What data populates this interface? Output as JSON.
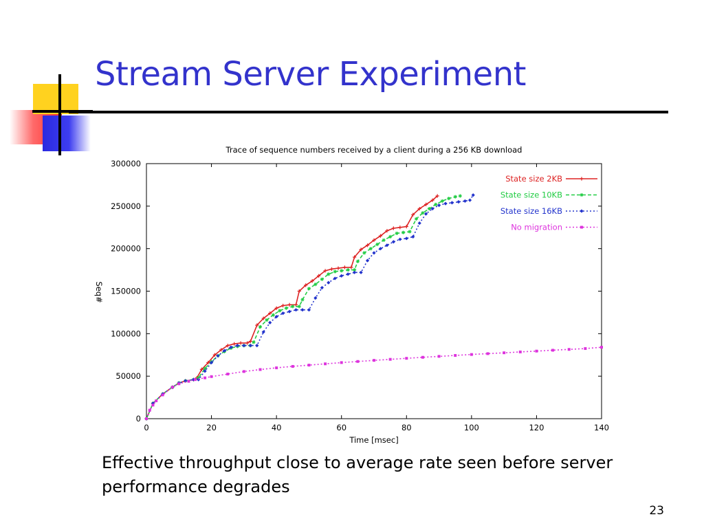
{
  "slide": {
    "title": "Stream Server Experiment",
    "caption": "Effective throughput close to average rate seen before server performance degrades",
    "page_number": "23",
    "title_color": "#3333cc"
  },
  "chart_data": {
    "type": "line",
    "title": "Trace of sequence numbers received by a client during a 256 KB download",
    "xlabel": "Time [msec]",
    "ylabel": "Seq#",
    "xlim": [
      0,
      140
    ],
    "ylim": [
      0,
      300000
    ],
    "xticks": [
      0,
      20,
      40,
      60,
      80,
      100,
      120,
      140
    ],
    "yticks": [
      0,
      50000,
      100000,
      150000,
      200000,
      250000,
      300000
    ],
    "grid": false,
    "legend_position": "top-right",
    "series": [
      {
        "name": "State size 2KB",
        "color": "#dd2222",
        "marker": "plus",
        "dash": "solid",
        "x": [
          0,
          2,
          5,
          8,
          10,
          12,
          14.5,
          15.5,
          17,
          19,
          21,
          23,
          25,
          27,
          29,
          31,
          32,
          34,
          36,
          38,
          40,
          42,
          44,
          46,
          47,
          49,
          51,
          53,
          55,
          57,
          59,
          61,
          63,
          64,
          66,
          68,
          70,
          72,
          74,
          76,
          78,
          80,
          82,
          84,
          86,
          88,
          89.5
        ],
        "y": [
          0,
          18000,
          29000,
          37000,
          42000,
          44500,
          46000,
          48000,
          58000,
          66000,
          75000,
          81000,
          86000,
          88000,
          89000,
          89000,
          91000,
          110000,
          118000,
          124000,
          130000,
          133000,
          134000,
          134000,
          150000,
          157000,
          162000,
          168000,
          174000,
          176000,
          177000,
          178000,
          178000,
          190000,
          199000,
          204000,
          210000,
          215000,
          221000,
          224000,
          225000,
          226000,
          240000,
          247000,
          252000,
          257000,
          262000
        ]
      },
      {
        "name": "State size 10KB",
        "color": "#22cc44",
        "marker": "star",
        "dash": "dash",
        "x": [
          0,
          2,
          5,
          8,
          10,
          12,
          14.5,
          16,
          18,
          20,
          22,
          24,
          26,
          28,
          30,
          32,
          33,
          35,
          37,
          39,
          41,
          43,
          45,
          47,
          48,
          50,
          52,
          54,
          56,
          58,
          60,
          62,
          64,
          65,
          67,
          69,
          71,
          73,
          75,
          77,
          79,
          81,
          83,
          85,
          87,
          89,
          91,
          93,
          95,
          96.5
        ],
        "y": [
          0,
          18000,
          29000,
          37000,
          42000,
          44500,
          46000,
          48000,
          59000,
          67000,
          74000,
          79000,
          83000,
          85000,
          86000,
          86000,
          90000,
          108000,
          116000,
          122000,
          127000,
          130000,
          132000,
          132000,
          140000,
          153000,
          158000,
          164000,
          170000,
          173000,
          174000,
          175000,
          175000,
          185000,
          195000,
          200000,
          205000,
          210000,
          214000,
          218000,
          219000,
          220000,
          235000,
          242000,
          247000,
          252000,
          256000,
          259000,
          261000,
          262000
        ]
      },
      {
        "name": "State size 16KB",
        "color": "#2233cc",
        "marker": "diamond",
        "dash": "dot",
        "x": [
          0,
          2,
          5,
          8,
          10,
          12,
          14.5,
          16,
          18,
          20,
          22,
          24,
          26,
          28,
          30,
          32,
          34,
          36,
          38,
          40,
          42,
          44,
          46,
          48,
          50,
          52,
          54,
          56,
          58,
          60,
          62,
          64,
          66,
          68,
          70,
          72,
          74,
          76,
          78,
          80,
          82,
          84,
          86,
          88,
          90,
          92,
          94,
          96,
          98,
          99.5,
          100.5
        ],
        "y": [
          0,
          18000,
          29000,
          37000,
          42000,
          44500,
          46000,
          46000,
          56000,
          66000,
          74000,
          80000,
          84000,
          86000,
          86000,
          86000,
          86000,
          102000,
          113000,
          120000,
          124000,
          126000,
          128000,
          128000,
          128000,
          142000,
          154000,
          160000,
          165000,
          168000,
          170000,
          172000,
          172000,
          186000,
          195000,
          200000,
          204000,
          208000,
          211000,
          212000,
          214000,
          230000,
          241000,
          247000,
          251000,
          253000,
          254000,
          255000,
          256000,
          257000,
          263000
        ]
      },
      {
        "name": "No migration",
        "color": "#dd33dd",
        "marker": "square",
        "dash": "dot",
        "x": [
          0,
          1,
          2,
          3,
          5,
          8,
          10,
          13,
          15,
          18,
          20,
          25,
          30,
          35,
          40,
          45,
          50,
          55,
          60,
          65,
          70,
          75,
          80,
          85,
          90,
          95,
          100,
          105,
          110,
          115,
          120,
          125,
          130,
          135,
          140
        ],
        "y": [
          0,
          10000,
          16000,
          21000,
          28000,
          37000,
          41000,
          44000,
          46000,
          48000,
          49500,
          52500,
          55500,
          57800,
          59800,
          61500,
          63000,
          64500,
          66000,
          67300,
          68600,
          69800,
          71000,
          72200,
          73300,
          74400,
          75500,
          76500,
          77500,
          78500,
          79500,
          80500,
          81500,
          82500,
          84000
        ]
      }
    ]
  }
}
